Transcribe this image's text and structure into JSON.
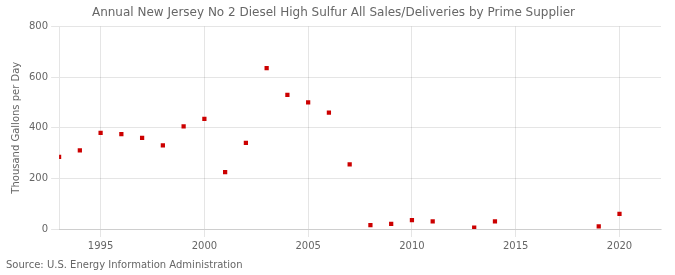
{
  "chart_data": {
    "type": "scatter",
    "title": "Annual New Jersey No 2 Diesel High Sulfur All Sales/Deliveries by Prime Supplier",
    "y_label": "Thousand Gallons per Day",
    "annotations": [
      "Source: U.S. Energy Information Administration"
    ],
    "x": [
      1993,
      1994,
      1995,
      1996,
      1997,
      1998,
      1999,
      2000,
      2001,
      2002,
      2003,
      2004,
      2005,
      2006,
      2007,
      2008,
      2009,
      2010,
      2011,
      2013,
      2014,
      2019,
      2020
    ],
    "values": [
      285,
      310,
      380,
      375,
      360,
      330,
      405,
      435,
      225,
      340,
      635,
      530,
      500,
      460,
      255,
      15,
      20,
      35,
      30,
      5,
      30,
      10,
      60
    ],
    "color": "#cc0000",
    "marker": "square",
    "xlim": [
      1993,
      2022
    ],
    "xticks": [
      1995,
      2000,
      2005,
      2010,
      2015,
      2020
    ],
    "ylim": [
      0,
      800
    ],
    "yticks": [
      0,
      200,
      400,
      600,
      800
    ],
    "grid": true
  }
}
